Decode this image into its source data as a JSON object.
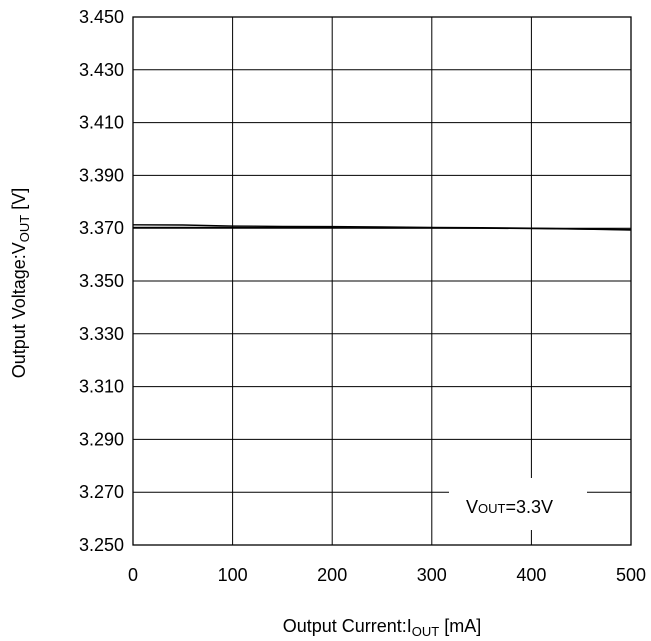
{
  "chart_data": {
    "type": "line",
    "title": "",
    "xlabel": {
      "prefix": "Output Current:I",
      "sub": "OUT",
      "suffix": " [mA]"
    },
    "ylabel": {
      "prefix": "Output Voltage:V",
      "sub": "OUT",
      "suffix": " [V]"
    },
    "xlim": [
      0,
      500
    ],
    "ylim": [
      3.25,
      3.45
    ],
    "x_ticks": [
      "0",
      "100",
      "200",
      "300",
      "400",
      "500"
    ],
    "y_ticks": [
      "3.250",
      "3.270",
      "3.290",
      "3.310",
      "3.330",
      "3.350",
      "3.370",
      "3.390",
      "3.410",
      "3.430",
      "3.450"
    ],
    "grid": true,
    "annotation": {
      "prefix": "V",
      "sub": "OUT",
      "suffix": "=3.3V"
    },
    "series": [
      {
        "x": [
          0,
          50,
          100,
          150,
          200,
          250,
          300,
          350,
          400,
          450,
          500
        ],
        "y": [
          3.3713,
          3.3712,
          3.3708,
          3.3707,
          3.3706,
          3.3705,
          3.3703,
          3.3702,
          3.37,
          3.3697,
          3.3693
        ]
      },
      {
        "x": [
          0,
          50,
          100,
          150,
          200,
          250,
          300,
          350,
          400,
          450,
          500
        ],
        "y": [
          3.3703,
          3.3703,
          3.3703,
          3.3702,
          3.3702,
          3.3701,
          3.3701,
          3.37,
          3.3699,
          3.3697,
          3.3695
        ]
      }
    ]
  }
}
